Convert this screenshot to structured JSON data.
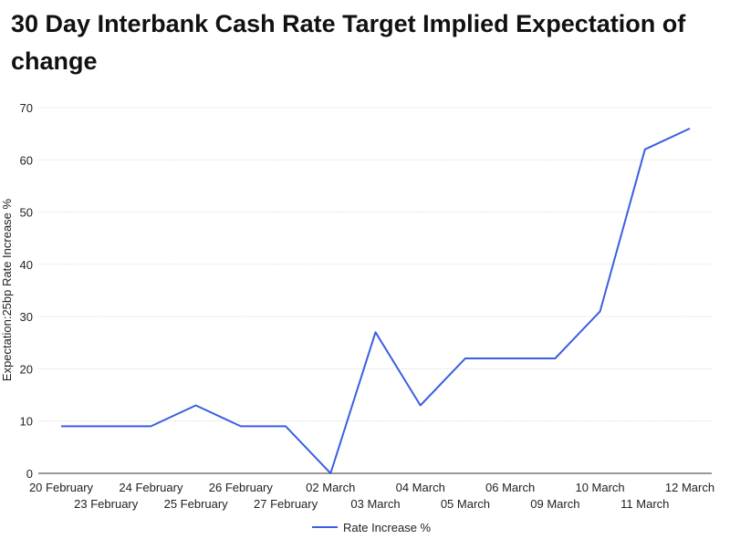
{
  "chart_data": {
    "type": "line",
    "title": "30 Day Interbank Cash Rate Target Implied Expectation of change",
    "xlabel": "",
    "ylabel": "Expectation:25bp Rate Increase %",
    "ylim": [
      0,
      70
    ],
    "yticks": [
      0,
      10,
      20,
      30,
      40,
      50,
      60,
      70
    ],
    "grid": true,
    "legend_position": "bottom",
    "categories": [
      "20 February",
      "23 February",
      "24 February",
      "25 February",
      "26 February",
      "27 February",
      "02 March",
      "03 March",
      "04 March",
      "05 March",
      "06 March",
      "09 March",
      "10 March",
      "11 March",
      "12 March"
    ],
    "series": [
      {
        "name": "Rate Increase %",
        "color": "#3a5fe0",
        "values": [
          9,
          9,
          9,
          13,
          9,
          9,
          0,
          27,
          13,
          22,
          22,
          22,
          31,
          62,
          66
        ]
      }
    ]
  }
}
